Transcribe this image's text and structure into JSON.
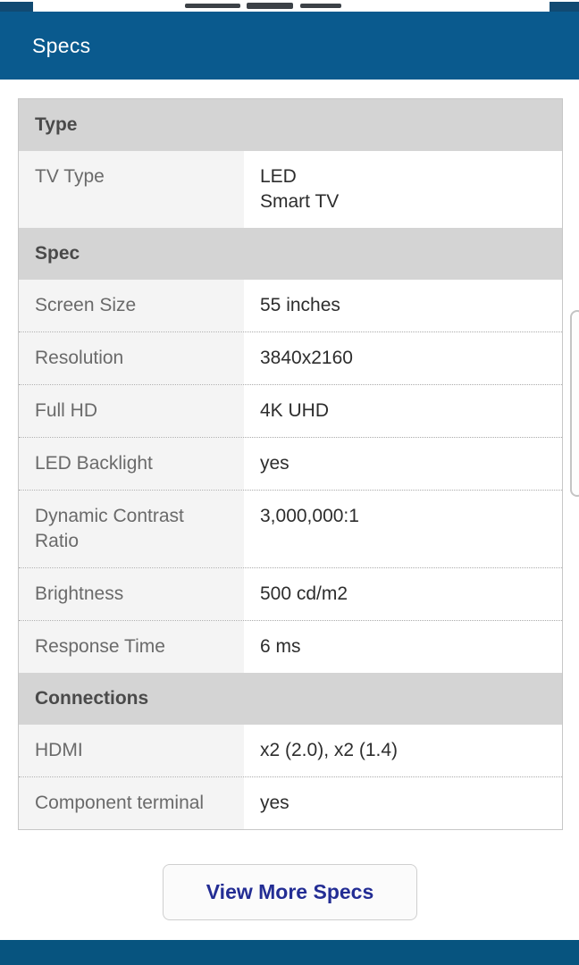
{
  "header": {
    "title": "Specs"
  },
  "table": {
    "sections": [
      {
        "title": "Type",
        "rows": [
          {
            "label": "TV Type",
            "value": "LED\nSmart TV"
          }
        ]
      },
      {
        "title": "Spec",
        "rows": [
          {
            "label": "Screen Size",
            "value": "55 inches"
          },
          {
            "label": "Resolution",
            "value": "3840x2160"
          },
          {
            "label": "Full HD",
            "value": "4K UHD"
          },
          {
            "label": "LED Backlight",
            "value": "yes"
          },
          {
            "label": "Dynamic Contrast Ratio",
            "value": "3,000,000:1"
          },
          {
            "label": "Brightness",
            "value": "500 cd/m2"
          },
          {
            "label": "Response Time",
            "value": "6 ms"
          }
        ]
      },
      {
        "title": "Connections",
        "rows": [
          {
            "label": "HDMI",
            "value": "x2 (2.0), x2 (1.4)"
          },
          {
            "label": "Component terminal",
            "value": "yes"
          }
        ]
      }
    ]
  },
  "button": {
    "label": "View More Specs"
  },
  "colors": {
    "header_blue": "#0a5a8e",
    "bottom_bar_blue": "#07547f",
    "section_header_bg": "#d4d4d4",
    "label_cell_bg": "#f4f4f4",
    "button_text_navy": "#232d94",
    "label_text": "#6a6a6a",
    "value_text": "#2d2d2d"
  }
}
